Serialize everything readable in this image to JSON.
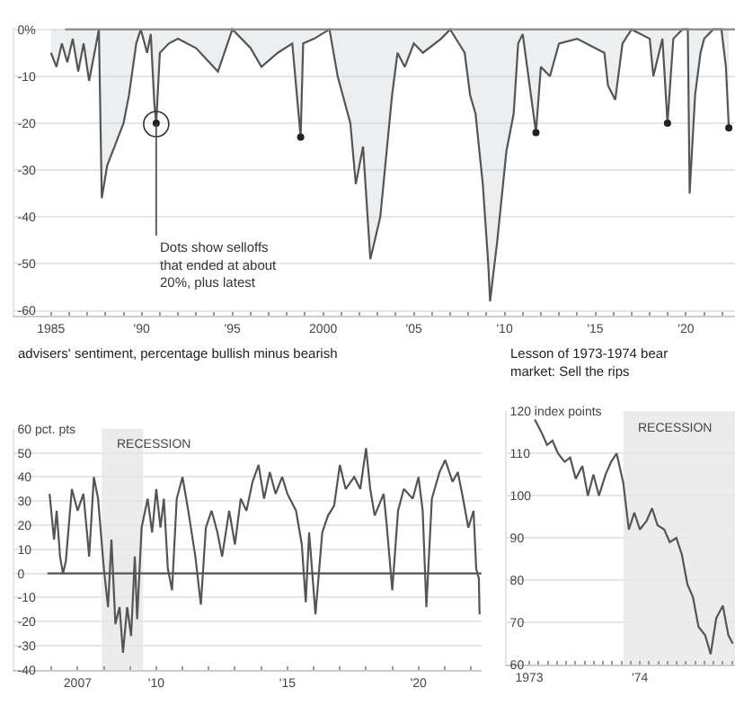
{
  "chart_data": [
    {
      "type": "area",
      "xlim": [
        1983.0,
        2022.7
      ],
      "ylim": [
        -61,
        0.5
      ],
      "grid": "y",
      "xticks": [
        {
          "value": 1985,
          "label": "1985"
        },
        {
          "value": 1986,
          "label": null
        },
        {
          "value": 1987,
          "label": null
        },
        {
          "value": 1988,
          "label": null
        },
        {
          "value": 1989,
          "label": null
        },
        {
          "value": 1990,
          "label": "'90"
        },
        {
          "value": 1991,
          "label": null
        },
        {
          "value": 1992,
          "label": null
        },
        {
          "value": 1993,
          "label": null
        },
        {
          "value": 1994,
          "label": null
        },
        {
          "value": 1995,
          "label": "'95"
        },
        {
          "value": 1996,
          "label": null
        },
        {
          "value": 1997,
          "label": null
        },
        {
          "value": 1998,
          "label": null
        },
        {
          "value": 1999,
          "label": null
        },
        {
          "value": 2000,
          "label": "2000"
        },
        {
          "value": 2001,
          "label": null
        },
        {
          "value": 2002,
          "label": null
        },
        {
          "value": 2003,
          "label": null
        },
        {
          "value": 2004,
          "label": null
        },
        {
          "value": 2005,
          "label": "'05"
        },
        {
          "value": 2006,
          "label": null
        },
        {
          "value": 2007,
          "label": null
        },
        {
          "value": 2008,
          "label": null
        },
        {
          "value": 2009,
          "label": null
        },
        {
          "value": 2010,
          "label": "'10"
        },
        {
          "value": 2011,
          "label": null
        },
        {
          "value": 2012,
          "label": null
        },
        {
          "value": 2013,
          "label": null
        },
        {
          "value": 2014,
          "label": null
        },
        {
          "value": 2015,
          "label": "'15"
        },
        {
          "value": 2016,
          "label": null
        },
        {
          "value": 2017,
          "label": null
        },
        {
          "value": 2018,
          "label": null
        },
        {
          "value": 2019,
          "label": null
        },
        {
          "value": 2020,
          "label": "'20"
        },
        {
          "value": 2021,
          "label": null
        },
        {
          "value": 2022,
          "label": null
        }
      ],
      "yticks": [
        {
          "value": 0,
          "label": "0%"
        },
        -10,
        -20,
        -30,
        -40,
        -50,
        -60
      ],
      "ref_lines": [
        {
          "axis": "y",
          "value": 0,
          "color": "#888888"
        }
      ],
      "annotations": [
        {
          "text": "Dots show selloffs\nthat ended at about\n20%, plus latest",
          "x": 1990.8,
          "y": -20.2
        }
      ],
      "series": [
        {
          "type": "area",
          "color": "#555555",
          "x": [
            1985.0,
            1985.3,
            1985.6,
            1985.9,
            1986.2,
            1986.5,
            1986.8,
            1987.1,
            1987.4,
            1987.64,
            1987.8,
            1988.1,
            1988.5,
            1989.0,
            1989.3,
            1989.7,
            1989.95,
            1990.3,
            1990.5,
            1990.7,
            1990.8,
            1991.0,
            1991.5,
            1992.0,
            1993.0,
            1994.2,
            1995.0,
            1996.0,
            1996.6,
            1997.5,
            1998.3,
            1998.76,
            1998.9,
            1999.5,
            2000.35,
            2000.8,
            2001.5,
            2001.8,
            2002.2,
            2002.6,
            2003.15,
            2003.8,
            2004.1,
            2004.5,
            2005.0,
            2005.5,
            2006.5,
            2007.0,
            2007.8,
            2008.1,
            2008.4,
            2008.8,
            2009.1,
            2009.2,
            2009.6,
            2010.1,
            2010.5,
            2010.75,
            2011.0,
            2011.73,
            2012.0,
            2012.5,
            2013.0,
            2014.0,
            2015.5,
            2015.7,
            2016.1,
            2016.5,
            2017.0,
            2018.0,
            2018.2,
            2018.7,
            2018.98,
            2019.3,
            2019.8,
            2020.1,
            2020.2,
            2020.5,
            2020.8,
            2021.0,
            2021.5,
            2021.95,
            2022.2,
            2022.36
          ],
          "values": [
            -5,
            -8,
            -3,
            -7,
            -2,
            -9,
            -3,
            -11,
            -5,
            0,
            -36,
            -29,
            -25,
            -20,
            -14,
            -3,
            0,
            -5,
            -1,
            -16,
            -20,
            -5,
            -3,
            -2,
            -4,
            -9,
            0,
            -4,
            -8,
            -5,
            -3,
            -23,
            -3,
            -2,
            0,
            -10,
            -20,
            -33,
            -25,
            -49,
            -40,
            -14,
            -5,
            -8,
            -3,
            -5,
            -2,
            0,
            -5,
            -14,
            -18,
            -33,
            -50,
            -58,
            -45,
            -26,
            -18,
            -3,
            -1,
            -22,
            -8,
            -10,
            -3,
            -2,
            -5,
            -12,
            -15,
            -3,
            0,
            -2,
            -10,
            -2,
            -20,
            -2,
            0,
            0,
            -35,
            -14,
            -5,
            -2,
            0,
            0,
            -8,
            -21
          ]
        },
        {
          "type": "scatter",
          "color": "#222222",
          "x": [
            1990.8,
            1998.76,
            2011.73,
            2018.98,
            2022.36
          ],
          "values": [
            -20,
            -23,
            -22,
            -20,
            -21
          ]
        }
      ]
    },
    {
      "type": "line",
      "title": "advisers' sentiment, percentage bullish minus bearish",
      "xlim": [
        2004.6,
        2022.4
      ],
      "ylim": [
        -40,
        60
      ],
      "grid": "y",
      "xticks": [
        {
          "value": 2006,
          "label": null
        },
        {
          "value": 2007,
          "label": "2007"
        },
        {
          "value": 2008,
          "label": null
        },
        {
          "value": 2009,
          "label": null
        },
        {
          "value": 2010,
          "label": "'10"
        },
        {
          "value": 2011,
          "label": null
        },
        {
          "value": 2012,
          "label": null
        },
        {
          "value": 2013,
          "label": null
        },
        {
          "value": 2014,
          "label": null
        },
        {
          "value": 2015,
          "label": "'15"
        },
        {
          "value": 2016,
          "label": null
        },
        {
          "value": 2017,
          "label": null
        },
        {
          "value": 2018,
          "label": null
        },
        {
          "value": 2019,
          "label": null
        },
        {
          "value": 2020,
          "label": "'20"
        },
        {
          "value": 2021,
          "label": null
        },
        {
          "value": 2022,
          "label": null
        }
      ],
      "yticks": [
        {
          "value": 60,
          "label": "60 pct. pts"
        },
        50,
        40,
        30,
        20,
        10,
        0,
        -10,
        -20,
        -30,
        -40
      ],
      "ref_lines": [
        {
          "axis": "y",
          "value": 0,
          "color": "#555555"
        }
      ],
      "bands": [
        {
          "axis": "x",
          "from": 2007.92,
          "to": 2009.5,
          "label": "RECESSION",
          "color": "#ececec"
        }
      ],
      "series": [
        {
          "color": "#555555",
          "x": [
            2005.93,
            2006.1,
            2006.2,
            2006.33,
            2006.44,
            2006.55,
            2006.78,
            2007.0,
            2007.22,
            2007.44,
            2007.62,
            2007.78,
            2008.0,
            2008.16,
            2008.29,
            2008.44,
            2008.6,
            2008.73,
            2008.89,
            2009.04,
            2009.18,
            2009.27,
            2009.44,
            2009.67,
            2009.84,
            2010.0,
            2010.16,
            2010.29,
            2010.44,
            2010.6,
            2010.78,
            2011.0,
            2011.22,
            2011.49,
            2011.7,
            2011.89,
            2012.11,
            2012.33,
            2012.51,
            2012.78,
            2013.0,
            2013.22,
            2013.44,
            2013.67,
            2013.9,
            2014.11,
            2014.33,
            2014.55,
            2014.8,
            2015.0,
            2015.33,
            2015.55,
            2015.7,
            2015.83,
            2016.07,
            2016.33,
            2016.55,
            2016.78,
            2017.0,
            2017.22,
            2017.55,
            2017.78,
            2018.0,
            2018.16,
            2018.33,
            2018.67,
            2018.78,
            2019.0,
            2019.22,
            2019.44,
            2019.78,
            2020.0,
            2020.16,
            2020.3,
            2020.51,
            2020.8,
            2021.02,
            2021.3,
            2021.5,
            2021.7,
            2021.9,
            2022.1,
            2022.2,
            2022.3,
            2022.33
          ],
          "values": [
            33,
            14,
            26,
            7,
            0,
            5,
            35,
            26,
            33,
            7,
            40,
            31,
            2,
            -14,
            14,
            -21,
            -14,
            -33,
            -14,
            -26,
            7,
            -19,
            19,
            31,
            17,
            35,
            19,
            31,
            2,
            -7,
            31,
            40,
            26,
            7,
            -13,
            19,
            26,
            17,
            7,
            26,
            12,
            31,
            26,
            38,
            45,
            31,
            42,
            33,
            40,
            33,
            26,
            12,
            -12,
            17,
            -17,
            17,
            24,
            28,
            45,
            35,
            40,
            35,
            52,
            35,
            24,
            33,
            21,
            -7,
            26,
            35,
            31,
            40,
            26,
            -14,
            31,
            42,
            47,
            38,
            42,
            31,
            19,
            26,
            2,
            -2,
            -17
          ]
        }
      ]
    },
    {
      "type": "line",
      "title": "Lesson of 1973-1974 bear market: Sell the rips",
      "xlim": [
        1972.8,
        1974.86
      ],
      "ylim": [
        60,
        120
      ],
      "grid": "y",
      "xticks": [
        {
          "value": 1973.0,
          "label": "1973"
        },
        {
          "value": 1973.083,
          "label": null
        },
        {
          "value": 1973.167,
          "label": null
        },
        {
          "value": 1973.25,
          "label": null
        },
        {
          "value": 1973.333,
          "label": null
        },
        {
          "value": 1973.417,
          "label": null
        },
        {
          "value": 1973.5,
          "label": null
        },
        {
          "value": 1973.583,
          "label": null
        },
        {
          "value": 1973.667,
          "label": null
        },
        {
          "value": 1973.75,
          "label": null
        },
        {
          "value": 1973.833,
          "label": null
        },
        {
          "value": 1973.917,
          "label": null
        },
        {
          "value": 1974.0,
          "label": "'74"
        },
        {
          "value": 1974.083,
          "label": null
        },
        {
          "value": 1974.167,
          "label": null
        },
        {
          "value": 1974.25,
          "label": null
        },
        {
          "value": 1974.333,
          "label": null
        },
        {
          "value": 1974.417,
          "label": null
        },
        {
          "value": 1974.5,
          "label": null
        },
        {
          "value": 1974.583,
          "label": null
        },
        {
          "value": 1974.667,
          "label": null
        },
        {
          "value": 1974.75,
          "label": null
        },
        {
          "value": 1974.833,
          "label": null
        }
      ],
      "yticks": [
        {
          "value": 120,
          "label": "120 index points"
        },
        110,
        100,
        90,
        80,
        70,
        60
      ],
      "bands": [
        {
          "axis": "x",
          "from": 1973.85,
          "to": 1974.86,
          "label": "RECESSION",
          "color": "#ececec"
        }
      ],
      "series": [
        {
          "color": "#555555",
          "x": [
            1973.05,
            1973.11,
            1973.16,
            1973.21,
            1973.26,
            1973.32,
            1973.37,
            1973.42,
            1973.48,
            1973.53,
            1973.58,
            1973.63,
            1973.69,
            1973.74,
            1973.79,
            1973.85,
            1973.9,
            1973.95,
            1974.0,
            1974.06,
            1974.11,
            1974.16,
            1974.22,
            1974.27,
            1974.33,
            1974.38,
            1974.43,
            1974.48,
            1974.53,
            1974.59,
            1974.64,
            1974.69,
            1974.75,
            1974.8,
            1974.84
          ],
          "values": [
            118,
            115,
            112,
            113,
            110,
            108,
            109,
            104,
            107,
            100,
            105,
            100,
            105,
            108,
            110,
            103,
            92,
            96,
            92,
            94,
            97,
            93,
            92,
            89,
            90,
            86,
            79,
            76,
            69,
            67,
            62.5,
            71,
            74,
            67,
            65
          ]
        }
      ]
    }
  ]
}
